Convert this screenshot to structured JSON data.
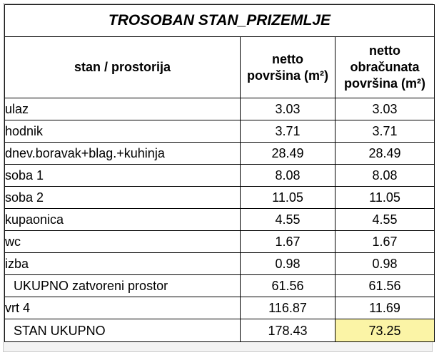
{
  "table": {
    "title": "TROSOBAN STAN_PRIZEMLJE",
    "headers": {
      "room": "stan / prostorija",
      "net_line1": "netto",
      "net_line2": "površina (m²)",
      "calc_line1": "netto",
      "calc_line2": "obračunata",
      "calc_line3": "površina (m²)"
    },
    "rows": [
      {
        "name": "ulaz",
        "net": "3.03",
        "calc": "3.03"
      },
      {
        "name": "hodnik",
        "net": "3.71",
        "calc": "3.71"
      },
      {
        "name": "dnev.boravak+blag.+kuhinja",
        "net": "28.49",
        "calc": "28.49"
      },
      {
        "name": "soba 1",
        "net": "8.08",
        "calc": "8.08"
      },
      {
        "name": "soba 2",
        "net": "11.05",
        "calc": "11.05"
      },
      {
        "name": "kupaonica",
        "net": "4.55",
        "calc": "4.55"
      },
      {
        "name": "wc",
        "net": "1.67",
        "calc": "1.67"
      },
      {
        "name": "izba",
        "net": "0.98",
        "calc": "0.98"
      }
    ],
    "enclosed_total": {
      "name": "UKUPNO zatvoreni prostor",
      "net": "61.56",
      "calc": "61.56"
    },
    "garden": {
      "name": "vrt 4",
      "net": "116.87",
      "calc": "11.69"
    },
    "grand_total": {
      "name": "STAN UKUPNO",
      "net": "178.43",
      "calc": "73.25"
    },
    "colors": {
      "highlight": "#fbf4a6"
    }
  }
}
